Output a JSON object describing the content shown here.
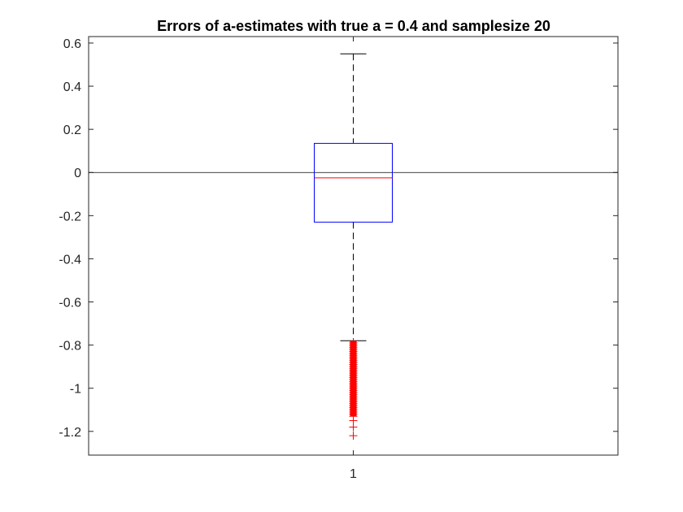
{
  "chart_data": {
    "type": "boxplot",
    "title": "Errors of a-estimates with true a = 0.4 and samplesize 20",
    "xlabel": "",
    "ylabel": "",
    "categories": [
      "1"
    ],
    "ylim": [
      -1.31,
      0.63
    ],
    "yticks": [
      -1.2,
      -1,
      -0.8,
      -0.6,
      -0.4,
      -0.2,
      0,
      0.2,
      0.4,
      0.6
    ],
    "ytick_labels": [
      "-1.2",
      "-1",
      "-0.8",
      "-0.6",
      "-0.4",
      "-0.2",
      "0",
      "0.2",
      "0.4",
      "0.6"
    ],
    "box": {
      "whisker_high": 0.55,
      "q3": 0.135,
      "median": -0.025,
      "q1": -0.23,
      "whisker_low": -0.78
    },
    "outliers": [
      -0.79,
      -0.8,
      -0.81,
      -0.82,
      -0.83,
      -0.84,
      -0.85,
      -0.86,
      -0.87,
      -0.88,
      -0.89,
      -0.9,
      -0.91,
      -0.92,
      -0.93,
      -0.94,
      -0.95,
      -0.96,
      -0.97,
      -0.98,
      -0.99,
      -1.0,
      -1.01,
      -1.02,
      -1.03,
      -1.04,
      -1.05,
      -1.06,
      -1.07,
      -1.08,
      -1.09,
      -1.1,
      -1.11,
      -1.12,
      -1.13,
      -1.15,
      -1.18,
      -1.22
    ],
    "reference_line": 0,
    "colors": {
      "box": "#0000ff",
      "median": "#ff0000",
      "outlier": "#ff0000",
      "whisker": "#000000",
      "axis": "#262626",
      "reference": "#000000"
    },
    "grid": false,
    "legend": "none"
  }
}
